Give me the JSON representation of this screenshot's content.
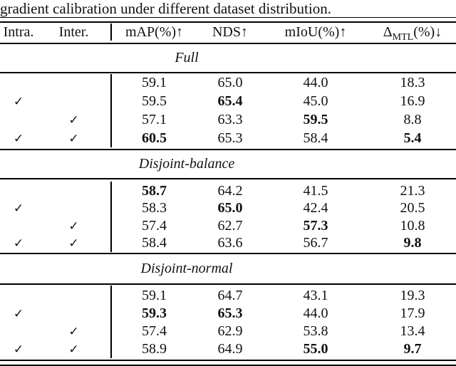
{
  "caption": "gradient calibration under different dataset distribution.",
  "colors": {
    "text": "#111111",
    "rule": "#000000",
    "background": "#ffffff"
  },
  "icons": {
    "checkmark": "✓"
  },
  "columns": {
    "intra": "Intra.",
    "inter": "Inter.",
    "map": "mAP(%)↑",
    "nds": "NDS↑",
    "miou": "mIoU(%)↑",
    "delta_prefix": "Δ",
    "delta_sub": "MTL",
    "delta_suffix": "(%)↓"
  },
  "sections": [
    {
      "title": "Full",
      "rows": [
        {
          "intra": false,
          "inter": false,
          "map": "59.1",
          "nds": "65.0",
          "miou": "44.0",
          "delta": "18.3",
          "bold": []
        },
        {
          "intra": true,
          "inter": false,
          "map": "59.5",
          "nds": "65.4",
          "miou": "45.0",
          "delta": "16.9",
          "bold": [
            "nds"
          ]
        },
        {
          "intra": false,
          "inter": true,
          "map": "57.1",
          "nds": "63.3",
          "miou": "59.5",
          "delta": "8.8",
          "bold": [
            "miou"
          ]
        },
        {
          "intra": true,
          "inter": true,
          "map": "60.5",
          "nds": "65.3",
          "miou": "58.4",
          "delta": "5.4",
          "bold": [
            "map",
            "delta"
          ]
        }
      ]
    },
    {
      "title": "Disjoint-balance",
      "rows": [
        {
          "intra": false,
          "inter": false,
          "map": "58.7",
          "nds": "64.2",
          "miou": "41.5",
          "delta": "21.3",
          "bold": [
            "map"
          ]
        },
        {
          "intra": true,
          "inter": false,
          "map": "58.3",
          "nds": "65.0",
          "miou": "42.4",
          "delta": "20.5",
          "bold": [
            "nds"
          ]
        },
        {
          "intra": false,
          "inter": true,
          "map": "57.4",
          "nds": "62.7",
          "miou": "57.3",
          "delta": "10.8",
          "bold": [
            "miou"
          ]
        },
        {
          "intra": true,
          "inter": true,
          "map": "58.4",
          "nds": "63.6",
          "miou": "56.7",
          "delta": "9.8",
          "bold": [
            "delta"
          ]
        }
      ]
    },
    {
      "title": "Disjoint-normal",
      "rows": [
        {
          "intra": false,
          "inter": false,
          "map": "59.1",
          "nds": "64.7",
          "miou": "43.1",
          "delta": "19.3",
          "bold": []
        },
        {
          "intra": true,
          "inter": false,
          "map": "59.3",
          "nds": "65.3",
          "miou": "44.0",
          "delta": "17.9",
          "bold": [
            "map",
            "nds"
          ]
        },
        {
          "intra": false,
          "inter": true,
          "map": "57.4",
          "nds": "62.9",
          "miou": "53.8",
          "delta": "13.4",
          "bold": []
        },
        {
          "intra": true,
          "inter": true,
          "map": "58.9",
          "nds": "64.9",
          "miou": "55.0",
          "delta": "9.7",
          "bold": [
            "miou",
            "delta"
          ]
        }
      ]
    }
  ]
}
